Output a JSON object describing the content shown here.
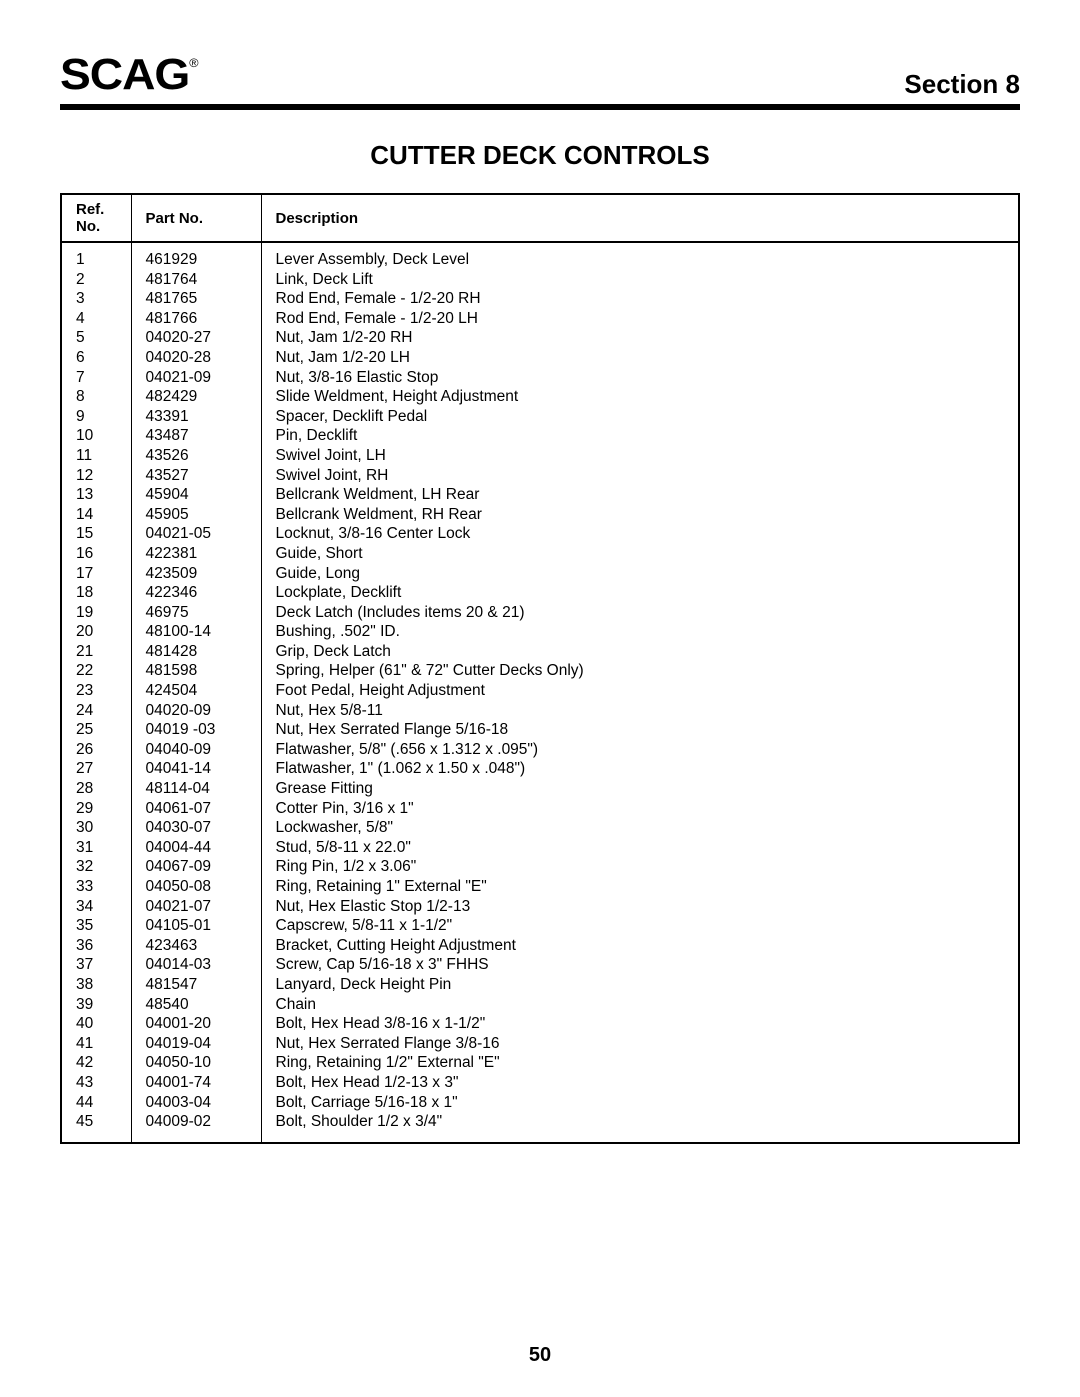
{
  "header": {
    "logo_text": "SCAG",
    "logo_reg": "®",
    "section_label": "Section 8"
  },
  "title": "CUTTER DECK CONTROLS",
  "table": {
    "columns": {
      "ref": "Ref. No.",
      "part": "Part No.",
      "desc": "Description"
    },
    "rows": [
      {
        "ref": "1",
        "part": "461929",
        "desc": "Lever Assembly, Deck Level"
      },
      {
        "ref": "2",
        "part": "481764",
        "desc": "Link, Deck Lift"
      },
      {
        "ref": "3",
        "part": "481765",
        "desc": "Rod End, Female - 1/2-20 RH"
      },
      {
        "ref": "4",
        "part": "481766",
        "desc": "Rod End, Female - 1/2-20 LH"
      },
      {
        "ref": "5",
        "part": "04020-27",
        "desc": "Nut, Jam 1/2-20 RH"
      },
      {
        "ref": "6",
        "part": "04020-28",
        "desc": "Nut, Jam 1/2-20 LH"
      },
      {
        "ref": "7",
        "part": "04021-09",
        "desc": "Nut, 3/8-16 Elastic Stop"
      },
      {
        "ref": "8",
        "part": "482429",
        "desc": "Slide Weldment, Height Adjustment"
      },
      {
        "ref": "9",
        "part": "43391",
        "desc": "Spacer, Decklift Pedal"
      },
      {
        "ref": "10",
        "part": "43487",
        "desc": "Pin, Decklift"
      },
      {
        "ref": "11",
        "part": "43526",
        "desc": "Swivel Joint, LH"
      },
      {
        "ref": "12",
        "part": "43527",
        "desc": "Swivel Joint, RH"
      },
      {
        "ref": "13",
        "part": "45904",
        "desc": "Bellcrank Weldment, LH Rear"
      },
      {
        "ref": "14",
        "part": "45905",
        "desc": "Bellcrank Weldment, RH Rear"
      },
      {
        "ref": "15",
        "part": "04021-05",
        "desc": "Locknut, 3/8-16 Center Lock"
      },
      {
        "ref": "16",
        "part": "422381",
        "desc": "Guide, Short"
      },
      {
        "ref": "17",
        "part": "423509",
        "desc": "Guide, Long"
      },
      {
        "ref": "18",
        "part": "422346",
        "desc": "Lockplate, Decklift"
      },
      {
        "ref": "19",
        "part": "46975",
        "desc": "Deck Latch (Includes items 20 & 21)"
      },
      {
        "ref": "20",
        "part": "48100-14",
        "desc": "Bushing, .502\" ID."
      },
      {
        "ref": "21",
        "part": "481428",
        "desc": "Grip, Deck Latch"
      },
      {
        "ref": "22",
        "part": "481598",
        "desc": "Spring, Helper (61\" & 72\" Cutter Decks Only)"
      },
      {
        "ref": "23",
        "part": "424504",
        "desc": "Foot Pedal, Height Adjustment"
      },
      {
        "ref": "24",
        "part": "04020-09",
        "desc": "Nut, Hex 5/8-11"
      },
      {
        "ref": "25",
        "part": "04019 -03",
        "desc": "Nut, Hex Serrated Flange 5/16-18"
      },
      {
        "ref": "26",
        "part": "04040-09",
        "desc": "Flatwasher, 5/8\" (.656 x 1.312 x .095\")"
      },
      {
        "ref": "27",
        "part": "04041-14",
        "desc": "Flatwasher, 1\" (1.062 x 1.50 x .048\")"
      },
      {
        "ref": "28",
        "part": "48114-04",
        "desc": "Grease Fitting"
      },
      {
        "ref": "29",
        "part": "04061-07",
        "desc": "Cotter Pin, 3/16 x 1\""
      },
      {
        "ref": "30",
        "part": "04030-07",
        "desc": "Lockwasher, 5/8\""
      },
      {
        "ref": "31",
        "part": "04004-44",
        "desc": "Stud, 5/8-11 x 22.0\""
      },
      {
        "ref": "32",
        "part": "04067-09",
        "desc": "Ring Pin, 1/2 x 3.06\""
      },
      {
        "ref": "33",
        "part": "04050-08",
        "desc": "Ring, Retaining 1\" External \"E\""
      },
      {
        "ref": "34",
        "part": "04021-07",
        "desc": "Nut, Hex Elastic Stop 1/2-13"
      },
      {
        "ref": "35",
        "part": "04105-01",
        "desc": "Capscrew, 5/8-11 x 1-1/2\""
      },
      {
        "ref": "36",
        "part": "423463",
        "desc": "Bracket, Cutting Height Adjustment"
      },
      {
        "ref": "37",
        "part": "04014-03",
        "desc": "Screw, Cap 5/16-18 x 3\" FHHS"
      },
      {
        "ref": "38",
        "part": "481547",
        "desc": "Lanyard, Deck Height Pin"
      },
      {
        "ref": "39",
        "part": "48540",
        "desc": "Chain"
      },
      {
        "ref": "40",
        "part": "04001-20",
        "desc": "Bolt, Hex Head 3/8-16 x 1-1/2\""
      },
      {
        "ref": "41",
        "part": "04019-04",
        "desc": "Nut, Hex Serrated Flange 3/8-16"
      },
      {
        "ref": "42",
        "part": "04050-10",
        "desc": "Ring, Retaining 1/2\" External \"E\""
      },
      {
        "ref": "43",
        "part": "04001-74",
        "desc": "Bolt, Hex Head 1/2-13 x 3\""
      },
      {
        "ref": "44",
        "part": "04003-04",
        "desc": "Bolt, Carriage 5/16-18 x 1\""
      },
      {
        "ref": "45",
        "part": "04009-02",
        "desc": "Bolt, Shoulder 1/2 x 3/4\""
      }
    ]
  },
  "page_number": "50"
}
